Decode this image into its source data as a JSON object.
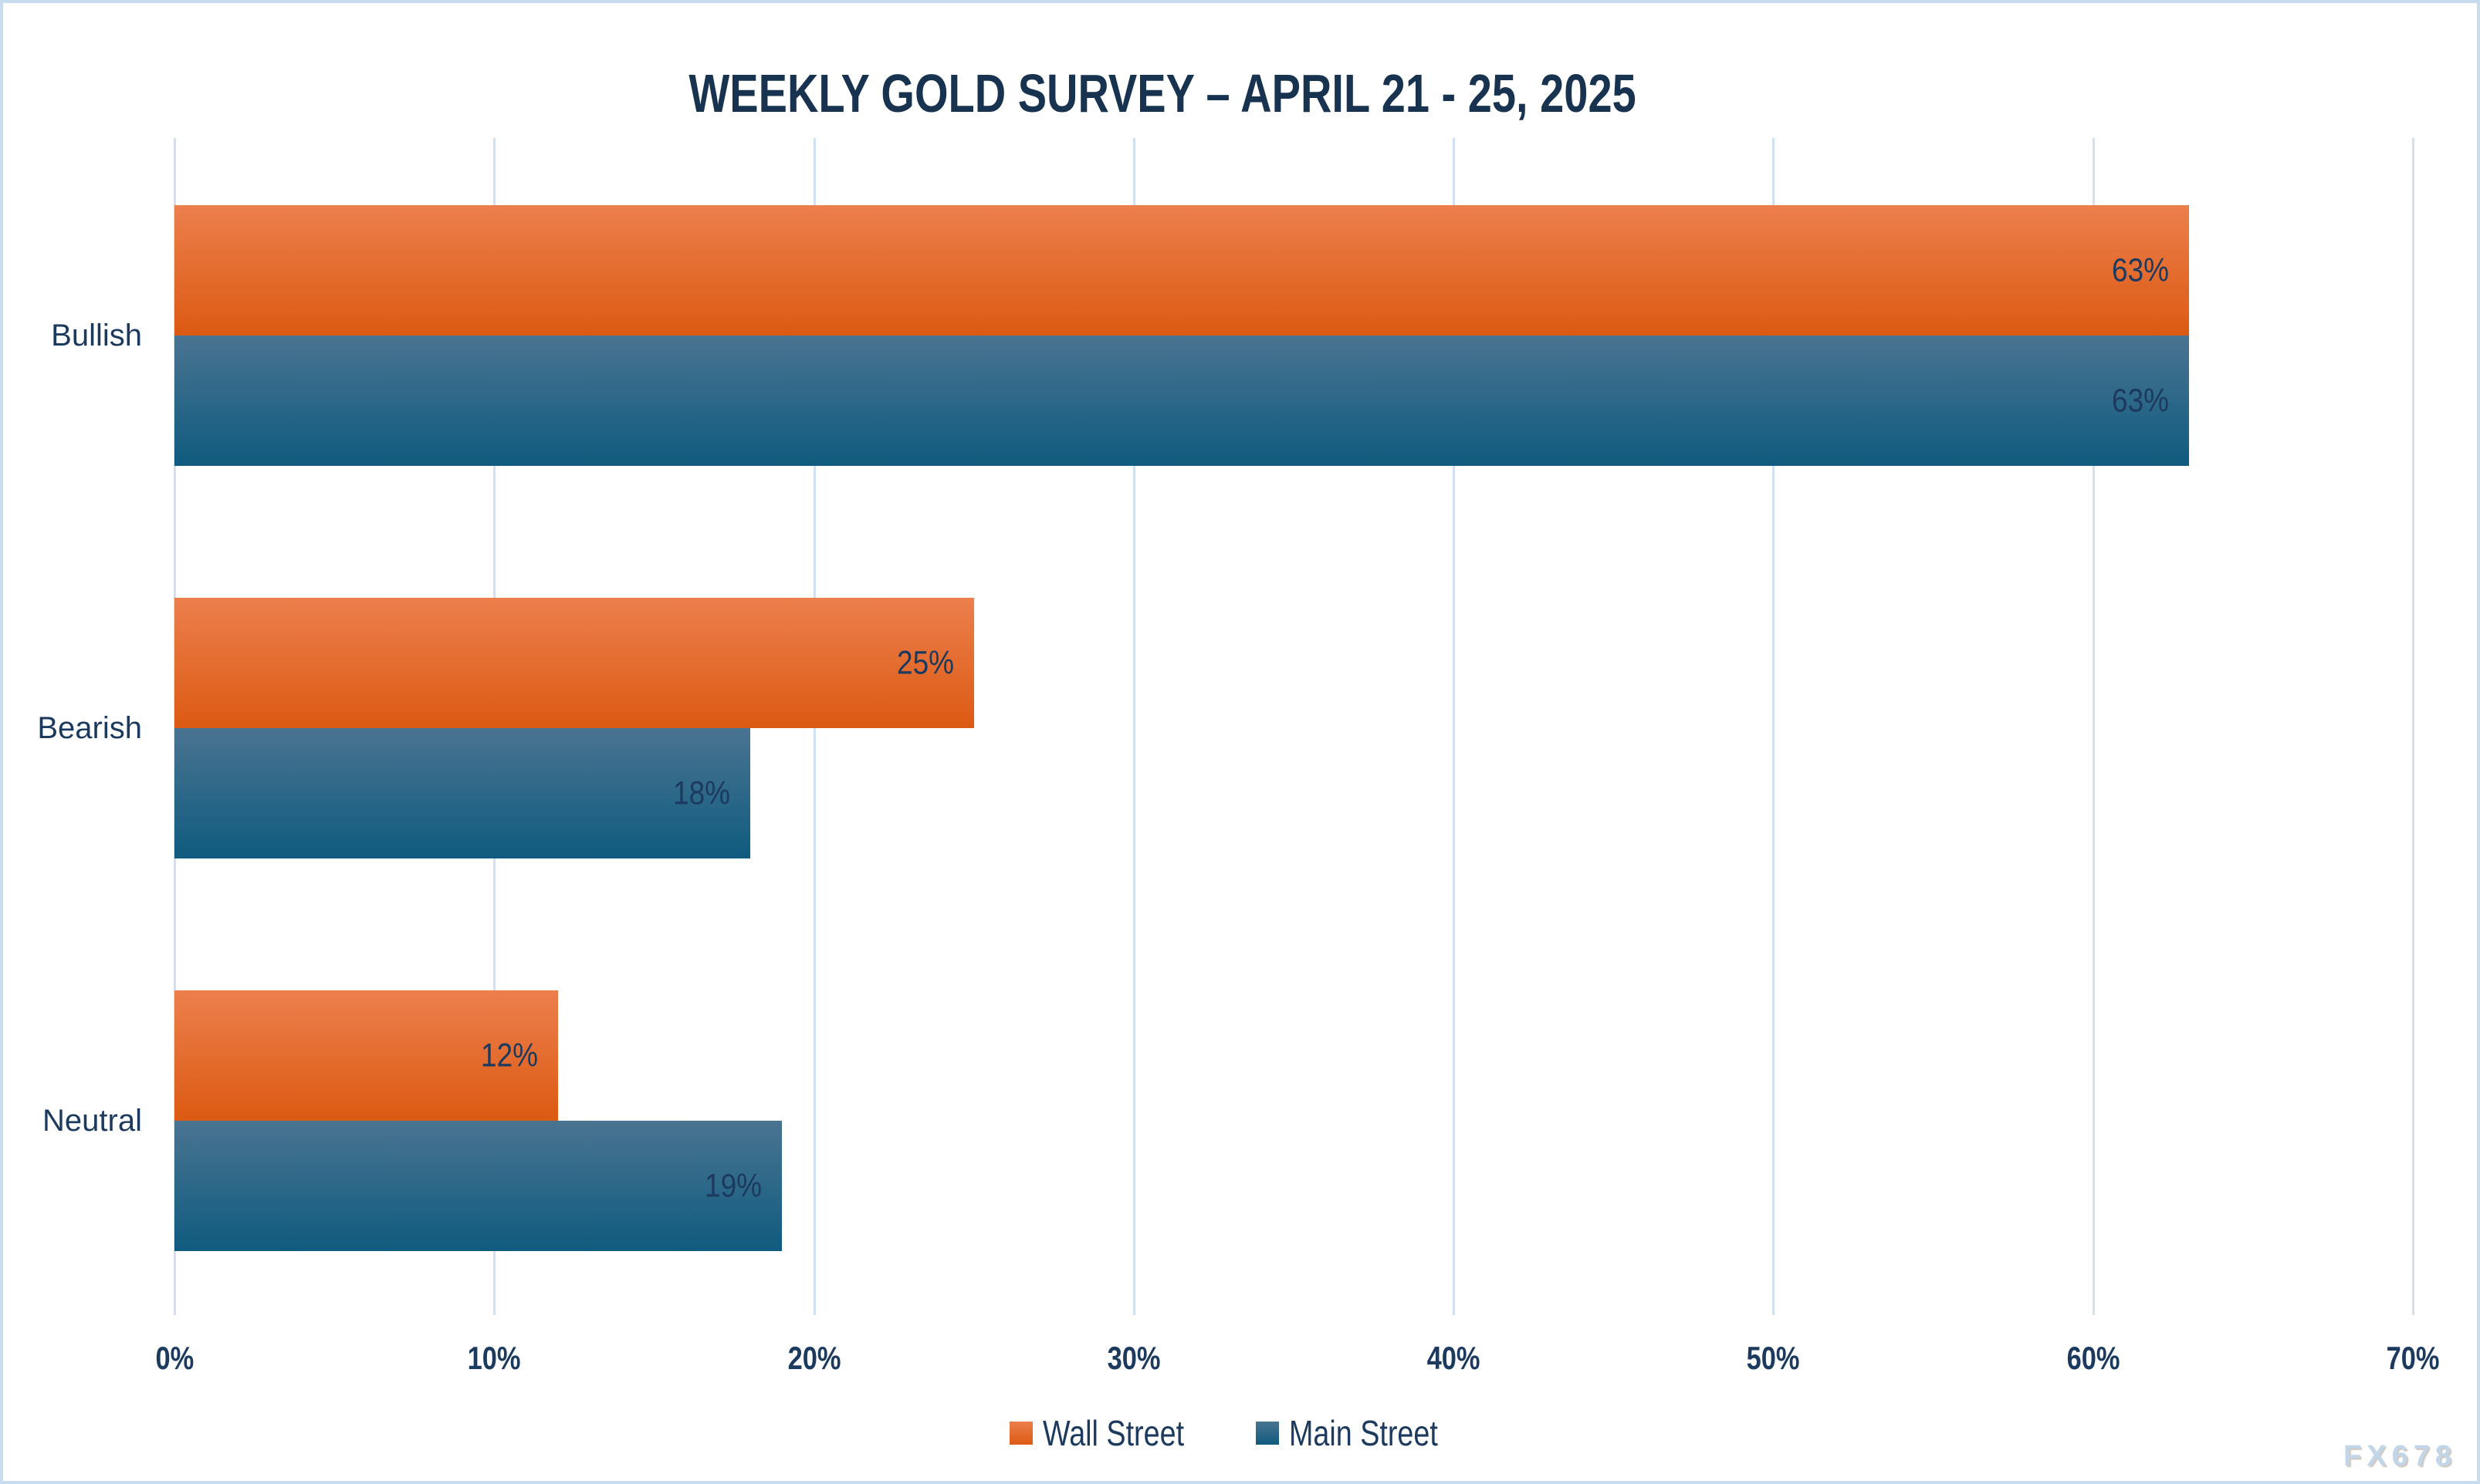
{
  "chart_data": {
    "type": "bar",
    "orientation": "horizontal",
    "title": "WEEKLY GOLD SURVEY – APRIL 21 - 25, 2025",
    "categories": [
      "Bullish",
      "Bearish",
      "Neutral"
    ],
    "series": [
      {
        "name": "Wall Street",
        "values": [
          63,
          25,
          12
        ],
        "color_top": "#EC7F4D",
        "color_bottom": "#DC5A12"
      },
      {
        "name": "Main Street",
        "values": [
          63,
          18,
          19
        ],
        "color_top": "#4A7491",
        "color_bottom": "#0F5B7F"
      }
    ],
    "value_suffix": "%",
    "xlabel": "",
    "ylabel": "",
    "xlim": [
      0,
      70
    ],
    "x_ticks": [
      "0%",
      "10%",
      "20%",
      "30%",
      "40%",
      "50%",
      "60%",
      "70%"
    ],
    "grid": true,
    "legend_position": "bottom",
    "data_labels": "inside-end"
  },
  "watermark": "FX678",
  "colors": {
    "text": "#1C3A5E",
    "title": "#18334F",
    "gridline": "#CFE1F3",
    "frame_border": "#C8DCF0",
    "background": "#FFFFFF",
    "watermark": "#C2D6EA"
  }
}
